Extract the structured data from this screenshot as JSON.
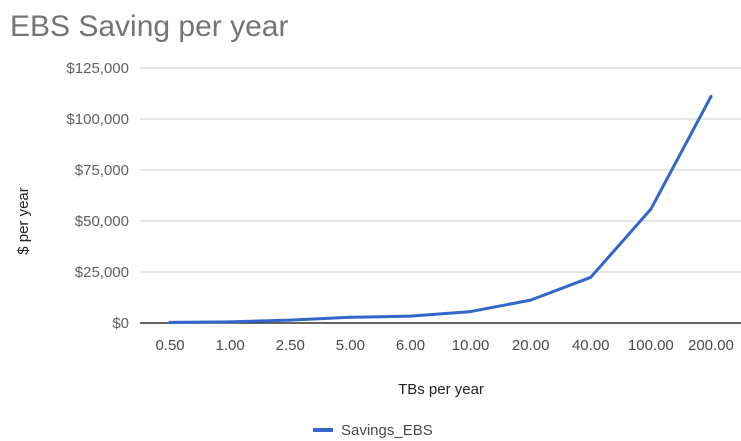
{
  "chart_data": {
    "type": "line",
    "title": "EBS Saving per year",
    "xlabel": "TBs per year",
    "ylabel": "$ per year",
    "categories": [
      "0.50",
      "1.00",
      "2.50",
      "5.00",
      "6.00",
      "10.00",
      "20.00",
      "40.00",
      "100.00",
      "200.00"
    ],
    "series": [
      {
        "name": "Savings_EBS",
        "color": "#3366cc",
        "values": [
          280,
          560,
          1400,
          2800,
          3350,
          5600,
          11200,
          22400,
          55800,
          111000
        ]
      }
    ],
    "ylim": [
      0,
      125000
    ],
    "yticks": [
      0,
      25000,
      50000,
      75000,
      100000,
      125000
    ],
    "ytick_labels": [
      "$0",
      "$25,000",
      "$50,000",
      "$75,000",
      "$100,000",
      "$125,000"
    ],
    "grid": true,
    "legend_position": "bottom",
    "colors": {
      "gridline": "#cccccc",
      "baseline": "#333333"
    }
  }
}
